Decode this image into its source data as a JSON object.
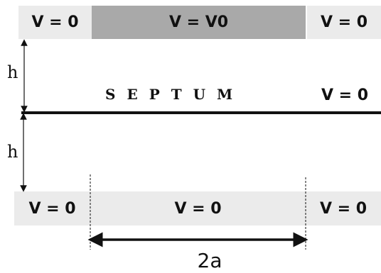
{
  "diagram": {
    "top_plates": {
      "left": "V = 0",
      "middle": "V = V0",
      "right": "V = 0"
    },
    "septum": {
      "label": "SEPTUM",
      "potential": "V = 0"
    },
    "bottom_plates": {
      "left": "V = 0",
      "middle": "V = 0",
      "right": "V = 0"
    },
    "dimensions": {
      "upper_gap": "h",
      "lower_gap": "h",
      "electrode_width": "2a"
    }
  }
}
